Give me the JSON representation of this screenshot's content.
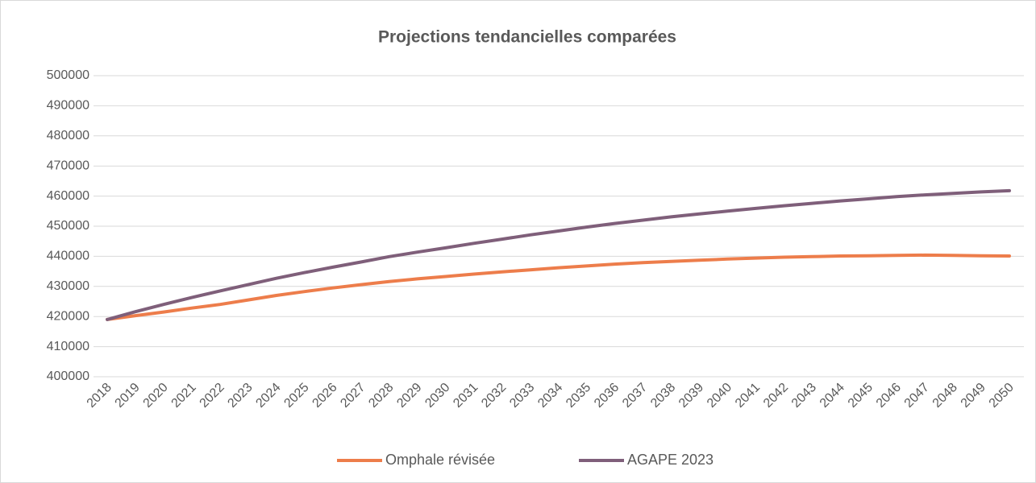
{
  "chart_data": {
    "type": "line",
    "title": "Projections tendancielles comparées",
    "categories": [
      "2018",
      "2019",
      "2020",
      "2021",
      "2022",
      "2023",
      "2024",
      "2025",
      "2026",
      "2027",
      "2028",
      "2029",
      "2030",
      "2031",
      "2032",
      "2033",
      "2034",
      "2035",
      "2036",
      "2037",
      "2038",
      "2039",
      "2040",
      "2041",
      "2042",
      "2043",
      "2044",
      "2045",
      "2046",
      "2047",
      "2048",
      "2049",
      "2050"
    ],
    "series": [
      {
        "name": "Omphale révisée",
        "color": "#ed7d4b",
        "values": [
          419000,
          420300,
          421500,
          422800,
          424000,
          425500,
          427000,
          428300,
          429500,
          430600,
          431600,
          432500,
          433300,
          434100,
          434800,
          435500,
          436200,
          436800,
          437400,
          437900,
          438300,
          438700,
          439100,
          439400,
          439700,
          439900,
          440100,
          440200,
          440300,
          440400,
          440300,
          440200,
          440100
        ]
      },
      {
        "name": "AGAPE 2023",
        "color": "#7f5f7a",
        "values": [
          419000,
          421600,
          424000,
          426300,
          428500,
          430600,
          432700,
          434600,
          436400,
          438100,
          439900,
          441400,
          442800,
          444300,
          445700,
          447100,
          448400,
          449700,
          450900,
          452000,
          453100,
          454100,
          455000,
          455900,
          456800,
          457600,
          458400,
          459100,
          459800,
          460400,
          460900,
          461400,
          461800
        ]
      }
    ],
    "ylim": [
      400000,
      500000
    ],
    "yticks": [
      400000,
      410000,
      420000,
      430000,
      440000,
      450000,
      460000,
      470000,
      480000,
      490000,
      500000
    ],
    "grid": true,
    "legend": "bottom"
  }
}
